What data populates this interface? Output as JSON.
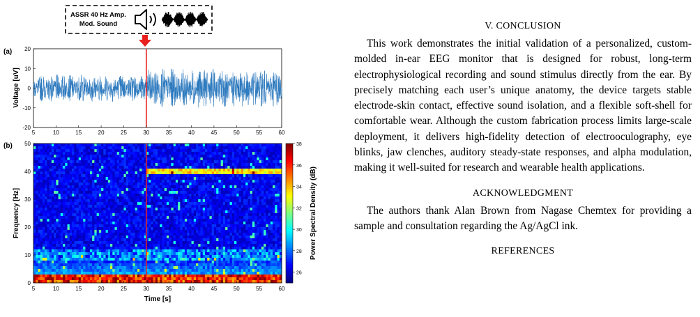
{
  "figure": {
    "stimulus_box": {
      "line1": "ASSR 40 Hz Amp.",
      "line2": "Mod. Sound",
      "icons": [
        "speaker-icon",
        "amplitude-modulated-waveform-icon"
      ]
    },
    "arrow_color": "#e8211f",
    "marker_color": "#e8211f",
    "panel_a": {
      "label": "(a)",
      "chart_data": {
        "type": "line",
        "ylabel": "Voltage [uV]",
        "xlabel": "",
        "xlim": [
          5,
          60
        ],
        "ylim": [
          -20,
          20
        ],
        "xticks": [
          "5",
          "10",
          "15",
          "20",
          "25",
          "30",
          "35",
          "40",
          "45",
          "50",
          "55",
          "60"
        ],
        "yticks": [
          "20",
          "10",
          "0",
          "-10",
          "-20"
        ],
        "line_color": "#2f7bbf",
        "stimulus_onset_s": 30,
        "envelope_before_onset_uv": 7,
        "envelope_after_onset_uv": 10
      }
    },
    "panel_b": {
      "label": "(b)",
      "chart_data": {
        "type": "heatmap",
        "ylabel": "Frequency [Hz]",
        "xlabel": "Time [s]",
        "xlim": [
          5,
          60
        ],
        "ylim": [
          0,
          50
        ],
        "xticks": [
          "5",
          "10",
          "15",
          "20",
          "25",
          "30",
          "35",
          "40",
          "45",
          "50",
          "55",
          "60"
        ],
        "yticks": [
          "50",
          "40",
          "30",
          "20",
          "10",
          "0"
        ],
        "colorbar_label": "Power Spectral Density (dB)",
        "colorbar_range": [
          25,
          38
        ],
        "colorbar_ticks": [
          "38",
          "36",
          "34",
          "32",
          "30",
          "28",
          "26"
        ],
        "colormap": "jet",
        "stimulus_onset_s": 30,
        "assr_band_hz": 40,
        "alpha_band_hz": [
          8,
          12
        ],
        "low_freq_band_hz": [
          0,
          3
        ]
      }
    }
  },
  "section_conclusion": {
    "numeral": "V. C",
    "rest": "ONCLUSION"
  },
  "para_conclusion": "This work demonstrates the initial validation of a personalized, custom-molded in-ear EEG monitor that is designed for robust, long-term electrophysiological recording and sound stimulus directly from the ear. By precisely matching each user’s unique anatomy, the device targets stable electrode-skin contact, effective sound isolation, and a flexible soft-shell for comfortable wear. Although the custom fabrication process limits large-scale deployment, it delivers high-fidelity detection of electrooculography, eye blinks, jaw clenches, auditory steady-state responses, and alpha modulation, making it well-suited for research and wearable health applications.",
  "section_ack": {
    "first": "A",
    "rest": "CKNOWLEDGMENT"
  },
  "para_ack": "The authors thank Alan Brown from Nagase Chemtex for providing a sample and consultation regarding the Ag/AgCl ink.",
  "section_ref": {
    "first": "R",
    "rest": "EFERENCES"
  }
}
